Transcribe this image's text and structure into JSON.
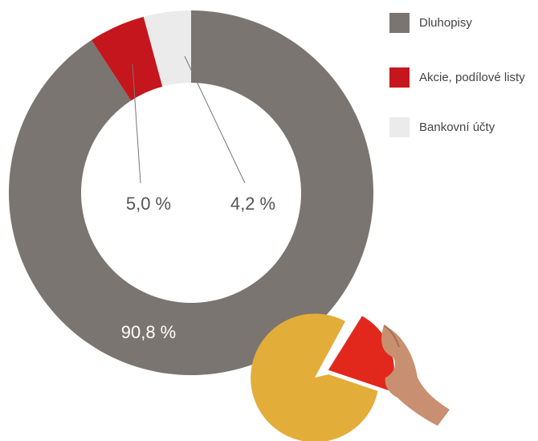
{
  "chart_data": {
    "type": "donut",
    "categories": [
      "Dluhopisy",
      "Akcie, podílové listy",
      "Bankovní účty"
    ],
    "values": [
      90.8,
      5.0,
      4.2
    ],
    "value_labels": [
      "90,8 %",
      "5,0 %",
      "4,2 %"
    ],
    "colors": [
      "#7a7571",
      "#c4161c",
      "#ebebeb"
    ],
    "legend": "top-right"
  }
}
